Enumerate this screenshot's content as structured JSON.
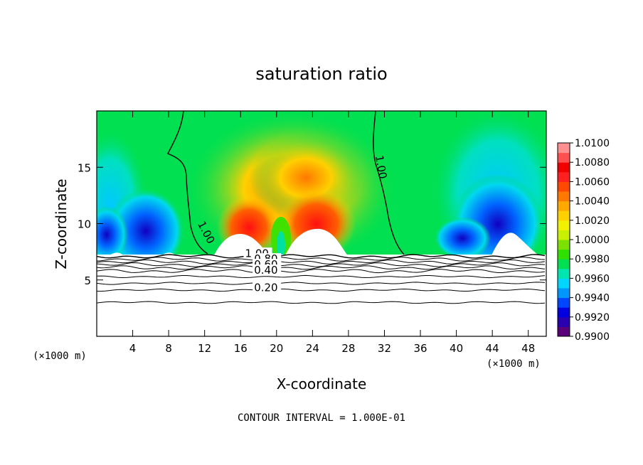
{
  "chart_data": {
    "type": "heatmap",
    "title": "saturation ratio",
    "xlabel": "X-coordinate",
    "ylabel": "Z-coordinate",
    "x_unit_left": "(×1000 m)",
    "x_unit_right": "(×1000 m)",
    "xlim": [
      0,
      50
    ],
    "ylim": [
      0,
      20
    ],
    "x_ticks": [
      4,
      8,
      12,
      16,
      20,
      24,
      28,
      32,
      36,
      40,
      44,
      48
    ],
    "y_ticks": [
      5,
      10,
      15
    ],
    "colorbar": {
      "levels": [
        "0.9900",
        "0.9920",
        "0.9940",
        "0.9960",
        "0.9980",
        "1.0000",
        "1.0020",
        "1.0040",
        "1.0060",
        "1.0080",
        "1.0100"
      ],
      "colors": [
        "#5a007a",
        "#2a00b0",
        "#0000e0",
        "#0046ff",
        "#0096ff",
        "#00d6ff",
        "#00e6b0",
        "#00e050",
        "#30e000",
        "#7ce000",
        "#c8f000",
        "#f0f000",
        "#ffd000",
        "#ffa800",
        "#ff7800",
        "#ff4800",
        "#ff2020",
        "#f00000",
        "#ff5050",
        "#ff9090"
      ]
    },
    "contour_labels": [
      "1.00",
      "1.00",
      "1.00",
      "0.80",
      "0.60",
      "0.40",
      "0.20"
    ],
    "contour_levels": [
      1.0,
      0.9,
      0.8,
      0.7,
      0.6,
      0.5,
      0.4,
      0.3,
      0.2,
      0.1
    ],
    "contour_heights": [
      7.1,
      6.85,
      6.6,
      6.35,
      6.1,
      5.8,
      5.3,
      4.7,
      4.1,
      3.0
    ],
    "footer": "CONTOUR INTERVAL = 1.000E-01"
  }
}
